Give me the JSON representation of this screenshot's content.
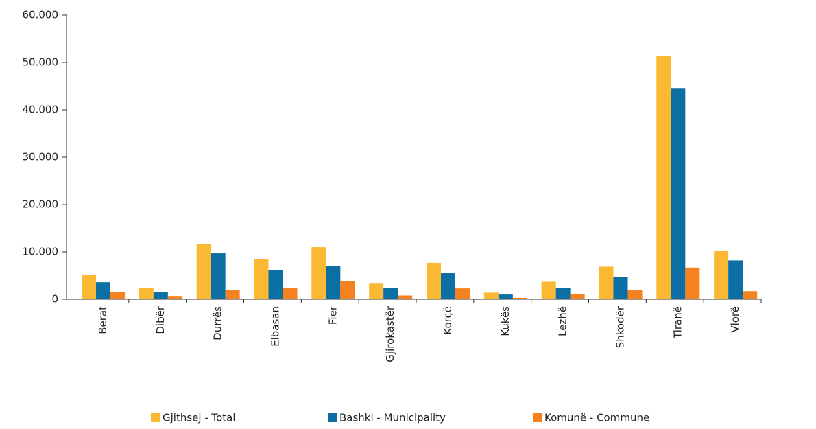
{
  "chart_data": {
    "type": "bar",
    "categories": [
      "Berat",
      "Dibër",
      "Durrës",
      "Elbasan",
      "Fier",
      "Gjirokastër",
      "Korçë",
      "Kukës",
      "Lezhë",
      "Shkodër",
      "Tiranë",
      "Vlorë"
    ],
    "series": [
      {
        "name": "Gjithsej  - Total",
        "color": "#fbb832",
        "values": [
          5200,
          2400,
          11700,
          8500,
          11000,
          3300,
          7700,
          1400,
          3700,
          6900,
          51300,
          10200
        ]
      },
      {
        "name": "Bashki  - Municipality",
        "color": "#0b6fa3",
        "values": [
          3600,
          1600,
          9700,
          6100,
          7100,
          2400,
          5500,
          1000,
          2400,
          4700,
          44600,
          8200
        ]
      },
      {
        "name": "Komunë  - Commune",
        "color": "#f5821f",
        "values": [
          1600,
          700,
          2000,
          2400,
          3900,
          800,
          2300,
          300,
          1100,
          2000,
          6700,
          1700
        ]
      }
    ],
    "ylim": [
      0,
      60000
    ],
    "yticks": [
      0,
      {
        "value": 10000,
        "label": "10.000"
      },
      {
        "value": 20000,
        "label": "20.000"
      },
      {
        "value": 30000,
        "label": "30.000"
      },
      {
        "value": 40000,
        "label": "40.000"
      },
      {
        "value": 50000,
        "label": "50.000"
      },
      {
        "value": 60000,
        "label": "60.000"
      }
    ],
    "legend": "bottom"
  }
}
